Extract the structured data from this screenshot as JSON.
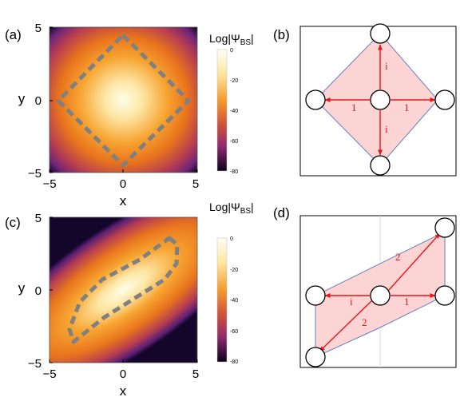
{
  "figure": {
    "panels": [
      {
        "label": "(a)",
        "type": "heatmap",
        "x_label": "x",
        "y_label": "y",
        "x_ticks": [
          "−5",
          "0",
          "5"
        ],
        "y_ticks": [
          "5",
          "0",
          "−5"
        ],
        "xlim": [
          -5,
          5
        ],
        "ylim": [
          -5,
          5
        ],
        "colorbar": {
          "title": "Log|Ψ",
          "title_sub": "BS",
          "title_end": "|",
          "ticks": [
            "0",
            "-20",
            "-40",
            "-60",
            "-80"
          ],
          "range": [
            -80,
            0
          ]
        },
        "contour": "diamond (dashed gray) with vertices approx. (0,4.3), (4.3,0), (0,-4.3), (-4.3,0)"
      },
      {
        "label": "(b)",
        "type": "diagram",
        "edge_labels": [
          "1",
          "1",
          "i",
          "i"
        ]
      },
      {
        "label": "(c)",
        "type": "heatmap",
        "x_label": "x",
        "y_label": "y",
        "x_ticks": [
          "−5",
          "0",
          "5"
        ],
        "y_ticks": [
          "5",
          "0",
          "−5"
        ],
        "xlim": [
          -5,
          5
        ],
        "ylim": [
          -5,
          5
        ],
        "colorbar": {
          "title": "Log|Ψ",
          "title_sub": "BS",
          "title_end": "|",
          "ticks": [
            "0",
            "-20",
            "-40",
            "-60",
            "-80"
          ],
          "range": [
            -80,
            0
          ]
        },
        "contour": "skewed hexagon (dashed gray) elongated along the diagonal"
      },
      {
        "label": "(d)",
        "type": "diagram",
        "edge_labels": [
          "2",
          "2",
          "i",
          "1"
        ]
      }
    ],
    "colors": {
      "heat_hot": "#fffde8",
      "heat_mid": "#f59a2c",
      "heat_low": "#9c2f72",
      "heat_min": "#11051f",
      "contour": "#808080",
      "arrow": "#e8151b",
      "fill": "#fcd4d4",
      "outline": "#6a7fbf"
    }
  }
}
